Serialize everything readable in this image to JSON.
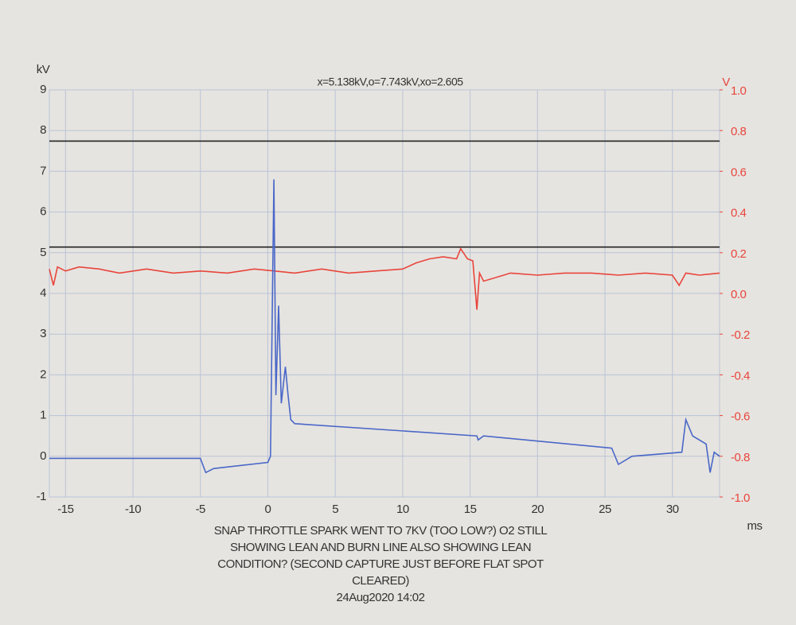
{
  "chart_data": {
    "type": "line",
    "title": "x=5.138kV,o=7.743kV,xo=2.605",
    "ylabel": "kV",
    "y2label": "V",
    "xlabel": "ms",
    "caption": [
      "SNAP THROTTLE SPARK WENT TO 7KV (TOO LOW?) O2 STILL",
      "SHOWING LEAN AND BURN LINE ALSO SHOWING LEAN",
      "CONDITION? (SECOND CAPTURE JUST BEFORE FLAT SPOT",
      "CLEARED)",
      "24Aug2020 14:02"
    ],
    "xlim": [
      -16.2,
      33.5
    ],
    "xticks": [
      -15,
      -10,
      -5,
      0,
      5,
      10,
      15,
      20,
      25,
      30
    ],
    "ylim": [
      -1,
      9
    ],
    "yticks": [
      -1,
      0,
      1,
      2,
      3,
      4,
      5,
      6,
      7,
      8,
      9
    ],
    "y2lim": [
      -1,
      1
    ],
    "y2ticks": [
      {
        "value": -1,
        "label": "-1.0"
      },
      -0.8,
      -0.6,
      -0.4,
      -0.2,
      {
        "value": 0,
        "label": "0.0"
      },
      0.2,
      0.4,
      0.6,
      0.8,
      {
        "value": 1,
        "label": "1.0"
      }
    ],
    "grid": true,
    "series": [
      {
        "color": "#222222",
        "x": [
          -16.2,
          33.5
        ],
        "values": [
          7.743,
          7.743
        ]
      },
      {
        "color": "#222222",
        "x": [
          -16.2,
          33.5
        ],
        "values": [
          5.138,
          5.138
        ]
      },
      {
        "color": "#e8453c",
        "axis": "y2",
        "x": [
          -16.2,
          -15.9,
          -15.6,
          -15,
          -14,
          -12.5,
          -11,
          -9,
          -7,
          -5,
          -3,
          -1,
          0.5,
          2,
          4,
          6,
          8,
          10,
          11,
          12,
          13,
          14,
          14.3,
          14.8,
          15.2,
          15.5,
          15.7,
          16,
          18,
          20,
          22,
          24,
          26,
          28,
          30,
          30.5,
          31,
          32,
          33.5
        ],
        "values": [
          0.12,
          0.04,
          0.13,
          0.11,
          0.13,
          0.12,
          0.1,
          0.12,
          0.1,
          0.11,
          0.1,
          0.12,
          0.11,
          0.1,
          0.12,
          0.1,
          0.11,
          0.12,
          0.15,
          0.17,
          0.18,
          0.17,
          0.22,
          0.17,
          0.16,
          -0.08,
          0.1,
          0.06,
          0.1,
          0.09,
          0.1,
          0.1,
          0.09,
          0.1,
          0.09,
          0.04,
          0.1,
          0.09,
          0.1
        ]
      },
      {
        "color": "#4a67c8",
        "x": [
          -16.2,
          -15,
          -10,
          -5,
          -4.6,
          -4.3,
          -4,
          0,
          0.2,
          0.45,
          0.6,
          0.8,
          1.0,
          1.3,
          1.5,
          1.7,
          2,
          15.5,
          15.6,
          16,
          25.5,
          26,
          27,
          30.7,
          31,
          31.5,
          32.5,
          32.8,
          33.1,
          33.5
        ],
        "values": [
          -0.05,
          -0.05,
          -0.05,
          -0.05,
          -0.4,
          -0.35,
          -0.3,
          -0.15,
          0,
          6.8,
          1.5,
          3.7,
          1.3,
          2.2,
          1.5,
          0.9,
          0.8,
          0.5,
          0.4,
          0.5,
          0.2,
          -0.2,
          0,
          0.1,
          0.9,
          0.5,
          0.3,
          -0.4,
          0.1,
          0
        ]
      }
    ]
  }
}
